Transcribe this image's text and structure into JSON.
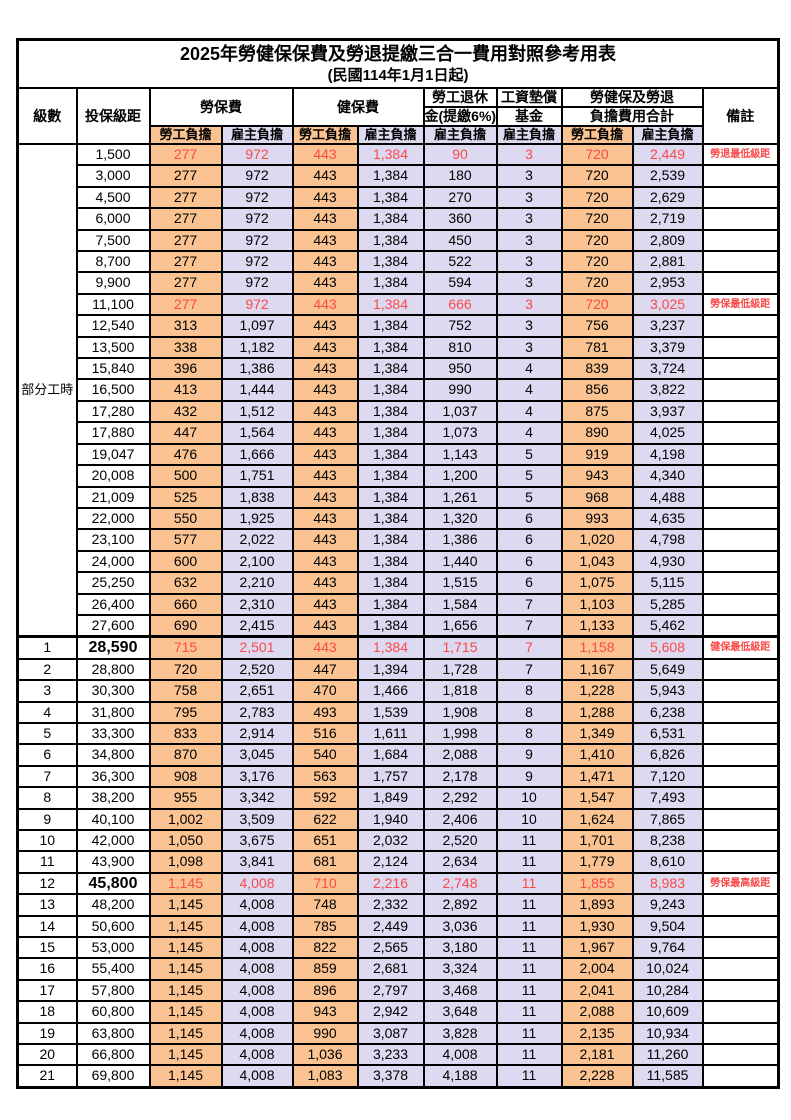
{
  "title": "2025年勞健保保費及勞退提繳三合一費用對照參考用表",
  "subtitle": "(民國114年1月1日起)",
  "colors": {
    "employee_col_bg": "#FAC391",
    "employer_col_bg": "#DCD9F0",
    "highlight_red": "#FB4A4A",
    "border": "#000000"
  },
  "header": {
    "level": "級數",
    "bracket": "投保級距",
    "labor_ins": "勞保費",
    "health_ins": "健保費",
    "pension_line1": "勞工退休",
    "pension_line2": "金(提繳6%)",
    "wage_fund_line1": "工資墊償",
    "wage_fund_line2": "基金",
    "total_line1": "勞健保及勞退",
    "total_line2": "負擔費用合計",
    "note": "備註",
    "employee": "勞工負擔",
    "employer": "雇主負擔"
  },
  "part_time_label": "部分工時",
  "rows": [
    {
      "level": "",
      "bracket": "1,500",
      "li_emp": "277",
      "li_er": "972",
      "hi_emp": "443",
      "hi_er": "1,384",
      "pension": "90",
      "wage": "3",
      "tot_emp": "720",
      "tot_er": "2,449",
      "note": "勞退最低級距",
      "red": true,
      "bold": false
    },
    {
      "level": "",
      "bracket": "3,000",
      "li_emp": "277",
      "li_er": "972",
      "hi_emp": "443",
      "hi_er": "1,384",
      "pension": "180",
      "wage": "3",
      "tot_emp": "720",
      "tot_er": "2,539",
      "note": "",
      "red": false,
      "bold": false
    },
    {
      "level": "",
      "bracket": "4,500",
      "li_emp": "277",
      "li_er": "972",
      "hi_emp": "443",
      "hi_er": "1,384",
      "pension": "270",
      "wage": "3",
      "tot_emp": "720",
      "tot_er": "2,629",
      "note": "",
      "red": false,
      "bold": false
    },
    {
      "level": "",
      "bracket": "6,000",
      "li_emp": "277",
      "li_er": "972",
      "hi_emp": "443",
      "hi_er": "1,384",
      "pension": "360",
      "wage": "3",
      "tot_emp": "720",
      "tot_er": "2,719",
      "note": "",
      "red": false,
      "bold": false
    },
    {
      "level": "",
      "bracket": "7,500",
      "li_emp": "277",
      "li_er": "972",
      "hi_emp": "443",
      "hi_er": "1,384",
      "pension": "450",
      "wage": "3",
      "tot_emp": "720",
      "tot_er": "2,809",
      "note": "",
      "red": false,
      "bold": false
    },
    {
      "level": "",
      "bracket": "8,700",
      "li_emp": "277",
      "li_er": "972",
      "hi_emp": "443",
      "hi_er": "1,384",
      "pension": "522",
      "wage": "3",
      "tot_emp": "720",
      "tot_er": "2,881",
      "note": "",
      "red": false,
      "bold": false
    },
    {
      "level": "",
      "bracket": "9,900",
      "li_emp": "277",
      "li_er": "972",
      "hi_emp": "443",
      "hi_er": "1,384",
      "pension": "594",
      "wage": "3",
      "tot_emp": "720",
      "tot_er": "2,953",
      "note": "",
      "red": false,
      "bold": false
    },
    {
      "level": "",
      "bracket": "11,100",
      "li_emp": "277",
      "li_er": "972",
      "hi_emp": "443",
      "hi_er": "1,384",
      "pension": "666",
      "wage": "3",
      "tot_emp": "720",
      "tot_er": "3,025",
      "note": "勞保最低級距",
      "red": true,
      "bold": false
    },
    {
      "level": "",
      "bracket": "12,540",
      "li_emp": "313",
      "li_er": "1,097",
      "hi_emp": "443",
      "hi_er": "1,384",
      "pension": "752",
      "wage": "3",
      "tot_emp": "756",
      "tot_er": "3,237",
      "note": "",
      "red": false,
      "bold": false
    },
    {
      "level": "",
      "bracket": "13,500",
      "li_emp": "338",
      "li_er": "1,182",
      "hi_emp": "443",
      "hi_er": "1,384",
      "pension": "810",
      "wage": "3",
      "tot_emp": "781",
      "tot_er": "3,379",
      "note": "",
      "red": false,
      "bold": false
    },
    {
      "level": "",
      "bracket": "15,840",
      "li_emp": "396",
      "li_er": "1,386",
      "hi_emp": "443",
      "hi_er": "1,384",
      "pension": "950",
      "wage": "4",
      "tot_emp": "839",
      "tot_er": "3,724",
      "note": "",
      "red": false,
      "bold": false
    },
    {
      "level": "",
      "bracket": "16,500",
      "li_emp": "413",
      "li_er": "1,444",
      "hi_emp": "443",
      "hi_er": "1,384",
      "pension": "990",
      "wage": "4",
      "tot_emp": "856",
      "tot_er": "3,822",
      "note": "",
      "red": false,
      "bold": false
    },
    {
      "level": "",
      "bracket": "17,280",
      "li_emp": "432",
      "li_er": "1,512",
      "hi_emp": "443",
      "hi_er": "1,384",
      "pension": "1,037",
      "wage": "4",
      "tot_emp": "875",
      "tot_er": "3,937",
      "note": "",
      "red": false,
      "bold": false
    },
    {
      "level": "",
      "bracket": "17,880",
      "li_emp": "447",
      "li_er": "1,564",
      "hi_emp": "443",
      "hi_er": "1,384",
      "pension": "1,073",
      "wage": "4",
      "tot_emp": "890",
      "tot_er": "4,025",
      "note": "",
      "red": false,
      "bold": false
    },
    {
      "level": "",
      "bracket": "19,047",
      "li_emp": "476",
      "li_er": "1,666",
      "hi_emp": "443",
      "hi_er": "1,384",
      "pension": "1,143",
      "wage": "5",
      "tot_emp": "919",
      "tot_er": "4,198",
      "note": "",
      "red": false,
      "bold": false
    },
    {
      "level": "",
      "bracket": "20,008",
      "li_emp": "500",
      "li_er": "1,751",
      "hi_emp": "443",
      "hi_er": "1,384",
      "pension": "1,200",
      "wage": "5",
      "tot_emp": "943",
      "tot_er": "4,340",
      "note": "",
      "red": false,
      "bold": false
    },
    {
      "level": "",
      "bracket": "21,009",
      "li_emp": "525",
      "li_er": "1,838",
      "hi_emp": "443",
      "hi_er": "1,384",
      "pension": "1,261",
      "wage": "5",
      "tot_emp": "968",
      "tot_er": "4,488",
      "note": "",
      "red": false,
      "bold": false
    },
    {
      "level": "",
      "bracket": "22,000",
      "li_emp": "550",
      "li_er": "1,925",
      "hi_emp": "443",
      "hi_er": "1,384",
      "pension": "1,320",
      "wage": "6",
      "tot_emp": "993",
      "tot_er": "4,635",
      "note": "",
      "red": false,
      "bold": false
    },
    {
      "level": "",
      "bracket": "23,100",
      "li_emp": "577",
      "li_er": "2,022",
      "hi_emp": "443",
      "hi_er": "1,384",
      "pension": "1,386",
      "wage": "6",
      "tot_emp": "1,020",
      "tot_er": "4,798",
      "note": "",
      "red": false,
      "bold": false
    },
    {
      "level": "",
      "bracket": "24,000",
      "li_emp": "600",
      "li_er": "2,100",
      "hi_emp": "443",
      "hi_er": "1,384",
      "pension": "1,440",
      "wage": "6",
      "tot_emp": "1,043",
      "tot_er": "4,930",
      "note": "",
      "red": false,
      "bold": false
    },
    {
      "level": "",
      "bracket": "25,250",
      "li_emp": "632",
      "li_er": "2,210",
      "hi_emp": "443",
      "hi_er": "1,384",
      "pension": "1,515",
      "wage": "6",
      "tot_emp": "1,075",
      "tot_er": "5,115",
      "note": "",
      "red": false,
      "bold": false
    },
    {
      "level": "",
      "bracket": "26,400",
      "li_emp": "660",
      "li_er": "2,310",
      "hi_emp": "443",
      "hi_er": "1,384",
      "pension": "1,584",
      "wage": "7",
      "tot_emp": "1,103",
      "tot_er": "5,285",
      "note": "",
      "red": false,
      "bold": false
    },
    {
      "level": "",
      "bracket": "27,600",
      "li_emp": "690",
      "li_er": "2,415",
      "hi_emp": "443",
      "hi_er": "1,384",
      "pension": "1,656",
      "wage": "7",
      "tot_emp": "1,133",
      "tot_er": "5,462",
      "note": "",
      "red": false,
      "bold": false
    },
    {
      "level": "1",
      "bracket": "28,590",
      "li_emp": "715",
      "li_er": "2,501",
      "hi_emp": "443",
      "hi_er": "1,384",
      "pension": "1,715",
      "wage": "7",
      "tot_emp": "1,158",
      "tot_er": "5,608",
      "note": "健保最低級距",
      "red": true,
      "bold": true
    },
    {
      "level": "2",
      "bracket": "28,800",
      "li_emp": "720",
      "li_er": "2,520",
      "hi_emp": "447",
      "hi_er": "1,394",
      "pension": "1,728",
      "wage": "7",
      "tot_emp": "1,167",
      "tot_er": "5,649",
      "note": "",
      "red": false,
      "bold": false
    },
    {
      "level": "3",
      "bracket": "30,300",
      "li_emp": "758",
      "li_er": "2,651",
      "hi_emp": "470",
      "hi_er": "1,466",
      "pension": "1,818",
      "wage": "8",
      "tot_emp": "1,228",
      "tot_er": "5,943",
      "note": "",
      "red": false,
      "bold": false
    },
    {
      "level": "4",
      "bracket": "31,800",
      "li_emp": "795",
      "li_er": "2,783",
      "hi_emp": "493",
      "hi_er": "1,539",
      "pension": "1,908",
      "wage": "8",
      "tot_emp": "1,288",
      "tot_er": "6,238",
      "note": "",
      "red": false,
      "bold": false
    },
    {
      "level": "5",
      "bracket": "33,300",
      "li_emp": "833",
      "li_er": "2,914",
      "hi_emp": "516",
      "hi_er": "1,611",
      "pension": "1,998",
      "wage": "8",
      "tot_emp": "1,349",
      "tot_er": "6,531",
      "note": "",
      "red": false,
      "bold": false
    },
    {
      "level": "6",
      "bracket": "34,800",
      "li_emp": "870",
      "li_er": "3,045",
      "hi_emp": "540",
      "hi_er": "1,684",
      "pension": "2,088",
      "wage": "9",
      "tot_emp": "1,410",
      "tot_er": "6,826",
      "note": "",
      "red": false,
      "bold": false
    },
    {
      "level": "7",
      "bracket": "36,300",
      "li_emp": "908",
      "li_er": "3,176",
      "hi_emp": "563",
      "hi_er": "1,757",
      "pension": "2,178",
      "wage": "9",
      "tot_emp": "1,471",
      "tot_er": "7,120",
      "note": "",
      "red": false,
      "bold": false
    },
    {
      "level": "8",
      "bracket": "38,200",
      "li_emp": "955",
      "li_er": "3,342",
      "hi_emp": "592",
      "hi_er": "1,849",
      "pension": "2,292",
      "wage": "10",
      "tot_emp": "1,547",
      "tot_er": "7,493",
      "note": "",
      "red": false,
      "bold": false
    },
    {
      "level": "9",
      "bracket": "40,100",
      "li_emp": "1,002",
      "li_er": "3,509",
      "hi_emp": "622",
      "hi_er": "1,940",
      "pension": "2,406",
      "wage": "10",
      "tot_emp": "1,624",
      "tot_er": "7,865",
      "note": "",
      "red": false,
      "bold": false
    },
    {
      "level": "10",
      "bracket": "42,000",
      "li_emp": "1,050",
      "li_er": "3,675",
      "hi_emp": "651",
      "hi_er": "2,032",
      "pension": "2,520",
      "wage": "11",
      "tot_emp": "1,701",
      "tot_er": "8,238",
      "note": "",
      "red": false,
      "bold": false
    },
    {
      "level": "11",
      "bracket": "43,900",
      "li_emp": "1,098",
      "li_er": "3,841",
      "hi_emp": "681",
      "hi_er": "2,124",
      "pension": "2,634",
      "wage": "11",
      "tot_emp": "1,779",
      "tot_er": "8,610",
      "note": "",
      "red": false,
      "bold": false
    },
    {
      "level": "12",
      "bracket": "45,800",
      "li_emp": "1,145",
      "li_er": "4,008",
      "hi_emp": "710",
      "hi_er": "2,216",
      "pension": "2,748",
      "wage": "11",
      "tot_emp": "1,855",
      "tot_er": "8,983",
      "note": "勞保最高級距",
      "red": true,
      "bold": true
    },
    {
      "level": "13",
      "bracket": "48,200",
      "li_emp": "1,145",
      "li_er": "4,008",
      "hi_emp": "748",
      "hi_er": "2,332",
      "pension": "2,892",
      "wage": "11",
      "tot_emp": "1,893",
      "tot_er": "9,243",
      "note": "",
      "red": false,
      "bold": false
    },
    {
      "level": "14",
      "bracket": "50,600",
      "li_emp": "1,145",
      "li_er": "4,008",
      "hi_emp": "785",
      "hi_er": "2,449",
      "pension": "3,036",
      "wage": "11",
      "tot_emp": "1,930",
      "tot_er": "9,504",
      "note": "",
      "red": false,
      "bold": false
    },
    {
      "level": "15",
      "bracket": "53,000",
      "li_emp": "1,145",
      "li_er": "4,008",
      "hi_emp": "822",
      "hi_er": "2,565",
      "pension": "3,180",
      "wage": "11",
      "tot_emp": "1,967",
      "tot_er": "9,764",
      "note": "",
      "red": false,
      "bold": false
    },
    {
      "level": "16",
      "bracket": "55,400",
      "li_emp": "1,145",
      "li_er": "4,008",
      "hi_emp": "859",
      "hi_er": "2,681",
      "pension": "3,324",
      "wage": "11",
      "tot_emp": "2,004",
      "tot_er": "10,024",
      "note": "",
      "red": false,
      "bold": false
    },
    {
      "level": "17",
      "bracket": "57,800",
      "li_emp": "1,145",
      "li_er": "4,008",
      "hi_emp": "896",
      "hi_er": "2,797",
      "pension": "3,468",
      "wage": "11",
      "tot_emp": "2,041",
      "tot_er": "10,284",
      "note": "",
      "red": false,
      "bold": false
    },
    {
      "level": "18",
      "bracket": "60,800",
      "li_emp": "1,145",
      "li_er": "4,008",
      "hi_emp": "943",
      "hi_er": "2,942",
      "pension": "3,648",
      "wage": "11",
      "tot_emp": "2,088",
      "tot_er": "10,609",
      "note": "",
      "red": false,
      "bold": false
    },
    {
      "level": "19",
      "bracket": "63,800",
      "li_emp": "1,145",
      "li_er": "4,008",
      "hi_emp": "990",
      "hi_er": "3,087",
      "pension": "3,828",
      "wage": "11",
      "tot_emp": "2,135",
      "tot_er": "10,934",
      "note": "",
      "red": false,
      "bold": false
    },
    {
      "level": "20",
      "bracket": "66,800",
      "li_emp": "1,145",
      "li_er": "4,008",
      "hi_emp": "1,036",
      "hi_er": "3,233",
      "pension": "4,008",
      "wage": "11",
      "tot_emp": "2,181",
      "tot_er": "11,260",
      "note": "",
      "red": false,
      "bold": false
    },
    {
      "level": "21",
      "bracket": "69,800",
      "li_emp": "1,145",
      "li_er": "4,008",
      "hi_emp": "1,083",
      "hi_er": "3,378",
      "pension": "4,188",
      "wage": "11",
      "tot_emp": "2,228",
      "tot_er": "11,585",
      "note": "",
      "red": false,
      "bold": false
    }
  ]
}
